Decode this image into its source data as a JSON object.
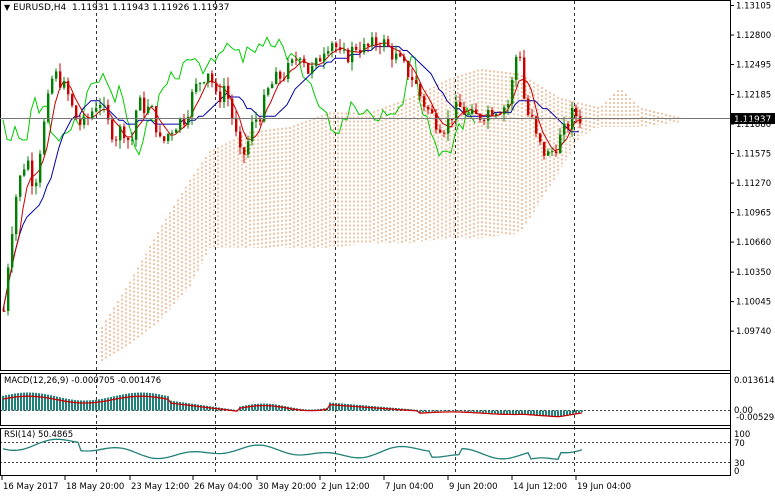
{
  "header": {
    "symbol": "EURUSD,H4",
    "ohlc": "1.11931 1.11943 1.11926 1.11937",
    "collapse_icon": "triangle-down-icon"
  },
  "main_panel": {
    "current_price": "1.11937",
    "current_price_value": 1.11937,
    "price_range": [
      1.0939,
      1.1328
    ],
    "ticks": [
      {
        "label": "1.13105",
        "value": 1.13105
      },
      {
        "label": "1.12800",
        "value": 1.128
      },
      {
        "label": "1.12495",
        "value": 1.12495
      },
      {
        "label": "1.12185",
        "value": 1.12185
      },
      {
        "label": "1.11880",
        "value": 1.1188
      },
      {
        "label": "1.11575",
        "value": 1.11575
      },
      {
        "label": "1.11270",
        "value": 1.1127
      },
      {
        "label": "1.10965",
        "value": 1.10965
      },
      {
        "label": "1.10660",
        "value": 1.1066
      },
      {
        "label": "1.10350",
        "value": 1.1035
      },
      {
        "label": "1.10045",
        "value": 1.10045
      },
      {
        "label": "1.09740",
        "value": 1.0974
      }
    ]
  },
  "macd_panel": {
    "label": "MACD(12,26,9) -0.000705 -0.001476",
    "tick_top": "0.013614",
    "tick_zero": "0.00",
    "tick_bottom": "-0.005294"
  },
  "rsi_panel": {
    "label": "RSI(14) 50.4865",
    "tick_100": "100",
    "tick_70": "70",
    "tick_30": "30",
    "tick_0": "0"
  },
  "time_axis": {
    "labels": [
      "16 May 2017",
      "18 May 20:00",
      "23 May 12:00",
      "26 May 04:00",
      "30 May 20:00",
      "2 Jun 12:00",
      "7 Jun 04:00",
      "9 Jun 20:00",
      "14 Jun 12:00",
      "19 Jun 04:00"
    ]
  },
  "colors": {
    "bull_candle": "#008000",
    "bear_candle": "#c80000",
    "tenkan": "#c80000",
    "kijun": "#0000aa",
    "chikou": "#00cc00",
    "cloud": "#e07020",
    "macd_hist": "#20807a",
    "macd_signal": "#c80000",
    "rsi_line": "#20807a",
    "grid": "#000000"
  },
  "chart_data": {
    "type": "candlestick",
    "symbol": "EURUSD",
    "timeframe": "H4",
    "indicators": [
      "Ichimoku",
      "MACD(12,26,9)",
      "RSI(14)"
    ]
  }
}
